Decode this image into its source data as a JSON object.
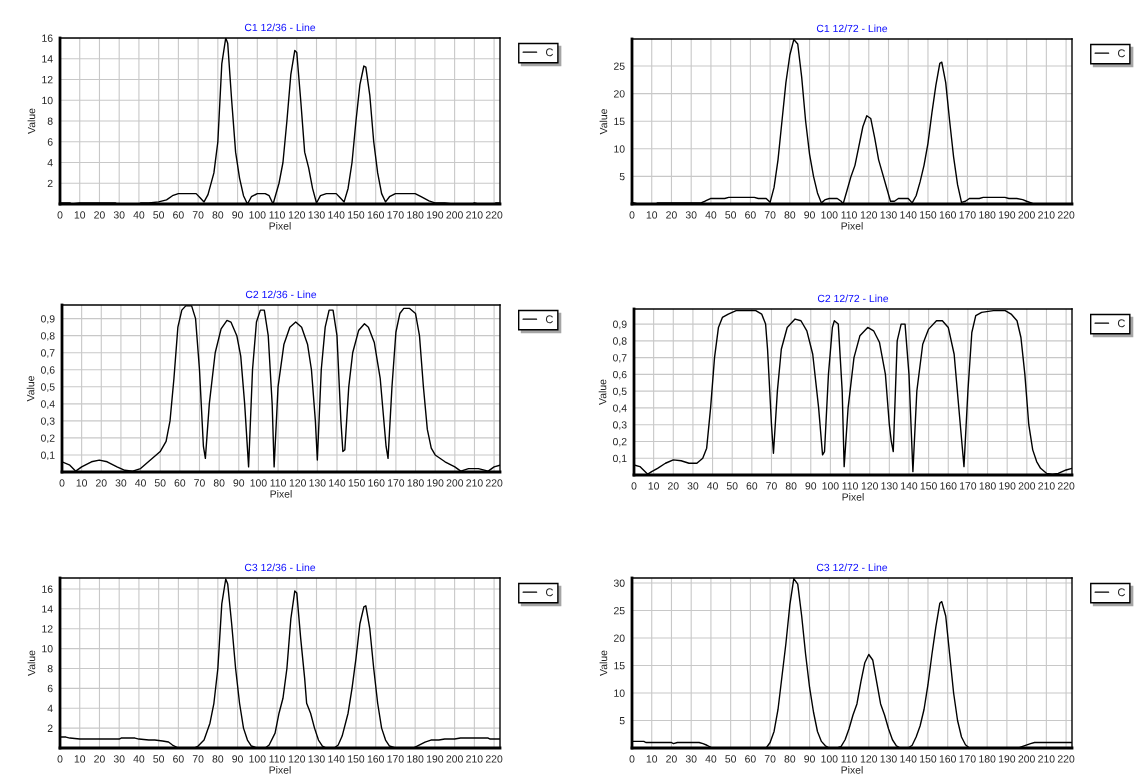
{
  "chart_data": [
    {
      "type": "line",
      "title": "C1 12/36 - Line",
      "xlabel": "Pixel",
      "ylabel": "Value",
      "xlim": [
        0,
        223
      ],
      "xticks": [
        0,
        10,
        20,
        30,
        40,
        50,
        60,
        70,
        80,
        90,
        100,
        110,
        120,
        130,
        140,
        150,
        160,
        170,
        180,
        190,
        200,
        210,
        220
      ],
      "ylim": [
        0,
        16
      ],
      "yticks": [
        2,
        4,
        6,
        8,
        10,
        12,
        14,
        16
      ],
      "grid": true,
      "legend": "top right",
      "series": [
        {
          "name": "C",
          "color": "#000000",
          "x": [
            0,
            5,
            6,
            10,
            28,
            29,
            40,
            41,
            45,
            50,
            54,
            57,
            60,
            69,
            71,
            73,
            75,
            78,
            80,
            82,
            84,
            85,
            87,
            89,
            91,
            93,
            95,
            97,
            100,
            104,
            106,
            108,
            111,
            113,
            115,
            117,
            119,
            120,
            122,
            124,
            126,
            128,
            130,
            132,
            135,
            140,
            142,
            144,
            146,
            148,
            150,
            152,
            154,
            155,
            157,
            159,
            161,
            163,
            165,
            167,
            170,
            180,
            183,
            187,
            190,
            195,
            199,
            209,
            210,
            212,
            220,
            221,
            223
          ],
          "values": [
            0.1,
            0.1,
            0,
            0.1,
            0.1,
            0,
            0,
            0.1,
            0.1,
            0.2,
            0.4,
            0.8,
            1,
            1,
            0.6,
            0.2,
            0.9,
            3,
            6,
            13.5,
            16,
            15.5,
            10,
            5,
            2.5,
            0.8,
            0,
            0.7,
            1,
            1,
            0.8,
            0,
            2,
            4,
            8,
            12.5,
            14.8,
            14.6,
            10,
            5,
            3.5,
            1.5,
            0.1,
            0.8,
            1,
            1,
            0.6,
            0.2,
            1.5,
            4,
            8,
            11.5,
            13.3,
            13.2,
            10.5,
            6,
            3,
            1,
            0.2,
            0.7,
            1,
            1,
            0.7,
            0.3,
            0.1,
            0.1,
            0,
            0,
            0.1,
            0,
            0,
            0.1,
            0.1
          ]
        }
      ]
    },
    {
      "type": "line",
      "title": "C1 12/72 - Line",
      "xlabel": "Pixel",
      "ylabel": "Value",
      "xlim": [
        0,
        223
      ],
      "xticks": [
        0,
        10,
        20,
        30,
        40,
        50,
        60,
        70,
        80,
        90,
        100,
        110,
        120,
        130,
        140,
        150,
        160,
        170,
        180,
        190,
        200,
        210,
        220
      ],
      "ylim": [
        0,
        29.9
      ],
      "yticks": [
        5,
        10,
        15,
        20,
        25
      ],
      "grid": true,
      "legend": "top right",
      "series": [
        {
          "name": "C",
          "color": "#000000",
          "x": [
            0,
            2,
            3,
            12,
            13,
            35,
            37,
            40,
            47,
            49,
            62,
            64,
            68,
            70,
            72,
            74,
            76,
            78,
            80,
            82,
            84,
            86,
            88,
            90,
            92,
            94,
            96,
            98,
            100,
            104,
            106,
            107,
            109,
            111,
            113,
            115,
            117,
            119,
            121,
            123,
            125,
            127,
            129,
            131,
            133,
            135,
            140,
            142,
            144,
            146,
            148,
            150,
            152,
            154,
            156,
            157,
            159,
            161,
            163,
            165,
            167,
            169,
            171,
            176,
            178,
            189,
            191,
            195,
            198,
            200,
            203,
            205,
            223
          ],
          "values": [
            0.3,
            0.1,
            0,
            0,
            0.2,
            0.2,
            0.5,
            1,
            1,
            1.2,
            1.2,
            1,
            1,
            0.3,
            3,
            8,
            15,
            22,
            27,
            29.8,
            29,
            23,
            15,
            9,
            5,
            2,
            0.2,
            0.8,
            1,
            1,
            0.5,
            0,
            2.5,
            5,
            7,
            10.5,
            14,
            16,
            15.5,
            12,
            8,
            5.5,
            3,
            0.5,
            0.5,
            1,
            1,
            0.2,
            1.5,
            4,
            7,
            11,
            16.5,
            21.5,
            25.5,
            25.7,
            22,
            15,
            8.5,
            3.5,
            0.3,
            0.5,
            1,
            1,
            1.2,
            1.2,
            1,
            1,
            0.8,
            0.5,
            0.1,
            0,
            0
          ]
        }
      ]
    },
    {
      "type": "line",
      "title": "C2 12/36 - Line",
      "xlabel": "Pixel",
      "ylabel": "Value",
      "xlim": [
        0,
        223
      ],
      "xticks": [
        0,
        10,
        20,
        30,
        40,
        50,
        60,
        70,
        80,
        90,
        100,
        110,
        120,
        130,
        140,
        150,
        160,
        170,
        180,
        190,
        200,
        210,
        220
      ],
      "ylim": [
        0,
        0.98
      ],
      "yticks": [
        {
          "value": 0.1,
          "label": "0,1"
        },
        {
          "value": 0.2,
          "label": "0,2"
        },
        {
          "value": 0.3,
          "label": "0,3"
        },
        {
          "value": 0.4,
          "label": "0,4"
        },
        {
          "value": 0.5,
          "label": "0,5"
        },
        {
          "value": 0.6,
          "label": "0,6"
        },
        {
          "value": 0.7,
          "label": "0,7"
        },
        {
          "value": 0.8,
          "label": "0,8"
        },
        {
          "value": 0.9,
          "label": "0,9"
        }
      ],
      "grid": true,
      "legend": "top right",
      "series": [
        {
          "name": "C",
          "color": "#000000",
          "x": [
            0,
            4,
            7,
            10,
            15,
            19,
            23,
            28,
            32,
            36,
            40,
            45,
            50,
            53,
            55,
            57,
            59,
            61,
            63,
            66,
            68,
            70,
            72,
            73,
            75,
            78,
            81,
            84,
            86,
            89,
            91,
            93,
            95,
            97,
            99,
            101,
            103,
            105,
            107,
            108,
            110,
            113,
            116,
            119,
            122,
            125,
            127,
            129,
            130,
            132,
            134,
            136,
            138,
            140,
            142,
            143,
            144,
            146,
            148,
            151,
            154,
            156,
            159,
            162,
            165,
            166,
            168,
            170,
            172,
            174,
            177,
            180,
            182,
            184,
            186,
            188,
            190,
            195,
            200,
            203,
            207,
            212,
            217,
            220,
            223
          ],
          "values": [
            0.06,
            0.04,
            0.005,
            0.03,
            0.06,
            0.07,
            0.06,
            0.03,
            0.01,
            0.005,
            0.02,
            0.07,
            0.12,
            0.18,
            0.3,
            0.55,
            0.85,
            0.95,
            0.975,
            0.975,
            0.9,
            0.6,
            0.15,
            0.08,
            0.4,
            0.7,
            0.84,
            0.89,
            0.88,
            0.8,
            0.68,
            0.4,
            0.03,
            0.6,
            0.88,
            0.95,
            0.95,
            0.8,
            0.4,
            0.03,
            0.5,
            0.75,
            0.85,
            0.88,
            0.85,
            0.75,
            0.6,
            0.3,
            0.07,
            0.6,
            0.85,
            0.95,
            0.95,
            0.8,
            0.3,
            0.12,
            0.13,
            0.5,
            0.7,
            0.83,
            0.87,
            0.85,
            0.76,
            0.55,
            0.15,
            0.08,
            0.5,
            0.82,
            0.93,
            0.96,
            0.96,
            0.93,
            0.8,
            0.5,
            0.25,
            0.14,
            0.1,
            0.06,
            0.03,
            0.005,
            0.02,
            0.02,
            0.005,
            0.03,
            0.04
          ]
        }
      ]
    },
    {
      "type": "line",
      "title": "C2 12/72 - Line",
      "xlabel": "Pixel",
      "ylabel": "Value",
      "xlim": [
        0,
        223
      ],
      "xticks": [
        0,
        10,
        20,
        30,
        40,
        50,
        60,
        70,
        80,
        90,
        100,
        110,
        120,
        130,
        140,
        150,
        160,
        170,
        180,
        190,
        200,
        210,
        220
      ],
      "ylim": [
        0,
        0.99
      ],
      "yticks": [
        {
          "value": 0.1,
          "label": "0,1"
        },
        {
          "value": 0.2,
          "label": "0,2"
        },
        {
          "value": 0.3,
          "label": "0,3"
        },
        {
          "value": 0.4,
          "label": "0,4"
        },
        {
          "value": 0.5,
          "label": "0,5"
        },
        {
          "value": 0.6,
          "label": "0,6"
        },
        {
          "value": 0.7,
          "label": "0,7"
        },
        {
          "value": 0.8,
          "label": "0,8"
        },
        {
          "value": 0.9,
          "label": "0,9"
        }
      ],
      "grid": true,
      "legend": "top right",
      "series": [
        {
          "name": "C",
          "color": "#000000",
          "x": [
            0,
            3,
            7,
            9,
            12,
            16,
            20,
            24,
            28,
            32,
            35,
            37,
            39,
            41,
            43,
            45,
            48,
            52,
            62,
            65,
            67,
            68,
            70,
            71,
            73,
            75,
            78,
            82,
            85,
            88,
            91,
            94,
            96,
            97,
            99,
            101,
            102,
            104,
            106,
            107,
            109,
            112,
            115,
            119,
            122,
            125,
            128,
            130,
            131,
            132,
            134,
            136,
            138,
            140,
            142,
            144,
            147,
            150,
            154,
            157,
            160,
            163,
            165,
            168,
            170,
            172,
            174,
            177,
            183,
            189,
            192,
            195,
            197,
            199,
            201,
            203,
            205,
            207,
            210,
            213,
            216,
            220,
            223
          ],
          "values": [
            0.06,
            0.05,
            0.005,
            0.02,
            0.04,
            0.07,
            0.09,
            0.085,
            0.07,
            0.07,
            0.1,
            0.16,
            0.4,
            0.7,
            0.88,
            0.94,
            0.96,
            0.98,
            0.98,
            0.96,
            0.9,
            0.75,
            0.3,
            0.13,
            0.5,
            0.75,
            0.88,
            0.93,
            0.92,
            0.86,
            0.72,
            0.4,
            0.12,
            0.14,
            0.6,
            0.88,
            0.92,
            0.9,
            0.5,
            0.05,
            0.4,
            0.7,
            0.83,
            0.88,
            0.86,
            0.79,
            0.6,
            0.3,
            0.2,
            0.14,
            0.8,
            0.9,
            0.9,
            0.6,
            0.02,
            0.5,
            0.78,
            0.87,
            0.92,
            0.92,
            0.88,
            0.72,
            0.45,
            0.05,
            0.5,
            0.85,
            0.95,
            0.97,
            0.98,
            0.98,
            0.96,
            0.92,
            0.82,
            0.6,
            0.3,
            0.15,
            0.08,
            0.04,
            0.01,
            0.005,
            0.01,
            0.03,
            0.04
          ]
        }
      ]
    },
    {
      "type": "line",
      "title": "C3 12/36 - Line",
      "xlabel": "Pixel",
      "ylabel": "Value",
      "xlim": [
        0,
        223
      ],
      "xticks": [
        0,
        10,
        20,
        30,
        40,
        50,
        60,
        70,
        80,
        90,
        100,
        110,
        120,
        130,
        140,
        150,
        160,
        170,
        180,
        190,
        200,
        210,
        220
      ],
      "ylim": [
        0,
        17.1
      ],
      "yticks": [
        2,
        4,
        6,
        8,
        10,
        12,
        14,
        16
      ],
      "grid": true,
      "legend": "top right",
      "series": [
        {
          "name": "C",
          "color": "#000000",
          "x": [
            0,
            3,
            5,
            10,
            30,
            31,
            38,
            40,
            45,
            48,
            52,
            55,
            57,
            60,
            68,
            70,
            73,
            76,
            78,
            80,
            82,
            84,
            85,
            87,
            89,
            91,
            93,
            95,
            97,
            100,
            104,
            106,
            109,
            111,
            113,
            115,
            117,
            119,
            120,
            122,
            124,
            125,
            127,
            129,
            131,
            133,
            135,
            139,
            141,
            143,
            146,
            148,
            150,
            152,
            154,
            155,
            157,
            159,
            161,
            163,
            165,
            167,
            170,
            179,
            181,
            185,
            188,
            192,
            195,
            200,
            203,
            217,
            218,
            223
          ],
          "values": [
            1.1,
            1.1,
            1.0,
            0.9,
            0.9,
            1.0,
            1.0,
            0.9,
            0.8,
            0.8,
            0.7,
            0.6,
            0.3,
            0,
            0,
            0.2,
            0.8,
            2.5,
            4.5,
            8,
            14.5,
            17,
            16.5,
            12.5,
            8,
            4.5,
            2,
            0.8,
            0.2,
            0,
            0,
            0.3,
            1.5,
            3.5,
            5,
            8,
            13,
            15.8,
            15.6,
            11,
            7,
            4.5,
            3.5,
            2,
            0.8,
            0.2,
            0,
            0,
            0.3,
            1.2,
            3.5,
            6,
            9,
            12.5,
            14.2,
            14.3,
            12,
            8,
            4.5,
            2,
            0.8,
            0.2,
            0,
            0,
            0.2,
            0.6,
            0.8,
            0.8,
            0.9,
            0.9,
            1.0,
            1.0,
            0.9,
            0.9
          ]
        }
      ]
    },
    {
      "type": "line",
      "title": "C3 12/72 - Line",
      "xlabel": "Pixel",
      "ylabel": "Value",
      "xlim": [
        0,
        223
      ],
      "xticks": [
        0,
        10,
        20,
        30,
        40,
        50,
        60,
        70,
        80,
        90,
        100,
        110,
        120,
        130,
        140,
        150,
        160,
        170,
        180,
        190,
        200,
        210,
        220
      ],
      "ylim": [
        0,
        30.9
      ],
      "yticks": [
        5,
        10,
        15,
        20,
        25,
        30
      ],
      "grid": true,
      "legend": "top right",
      "series": [
        {
          "name": "C",
          "color": "#000000",
          "x": [
            0,
            6,
            7,
            20,
            21,
            23,
            34,
            36,
            38,
            40,
            42,
            68,
            70,
            72,
            74,
            76,
            78,
            80,
            82,
            84,
            86,
            88,
            90,
            92,
            94,
            96,
            98,
            100,
            104,
            106,
            108,
            110,
            112,
            114,
            116,
            118,
            120,
            122,
            124,
            126,
            128,
            130,
            132,
            134,
            136,
            140,
            142,
            144,
            146,
            148,
            150,
            152,
            154,
            156,
            157,
            159,
            161,
            163,
            165,
            167,
            169,
            171,
            196,
            198,
            202,
            204,
            223
          ],
          "values": [
            1.2,
            1.2,
            1,
            1,
            0.8,
            1,
            1,
            0.8,
            0.5,
            0.1,
            0,
            0,
            1,
            3,
            7,
            13,
            19,
            26,
            30.8,
            29.8,
            24,
            17,
            11,
            6.5,
            3,
            1.2,
            0.4,
            0,
            0,
            0.3,
            1.5,
            3.5,
            6,
            8,
            12,
            15.5,
            17,
            16,
            12,
            8,
            6,
            3.5,
            1.5,
            0.4,
            0,
            0,
            0.5,
            2,
            4,
            7,
            11.5,
            17,
            22,
            26.3,
            26.6,
            24,
            17,
            10,
            5,
            2,
            0.6,
            0,
            0,
            0.3,
            0.8,
            1,
            1
          ]
        }
      ]
    }
  ]
}
